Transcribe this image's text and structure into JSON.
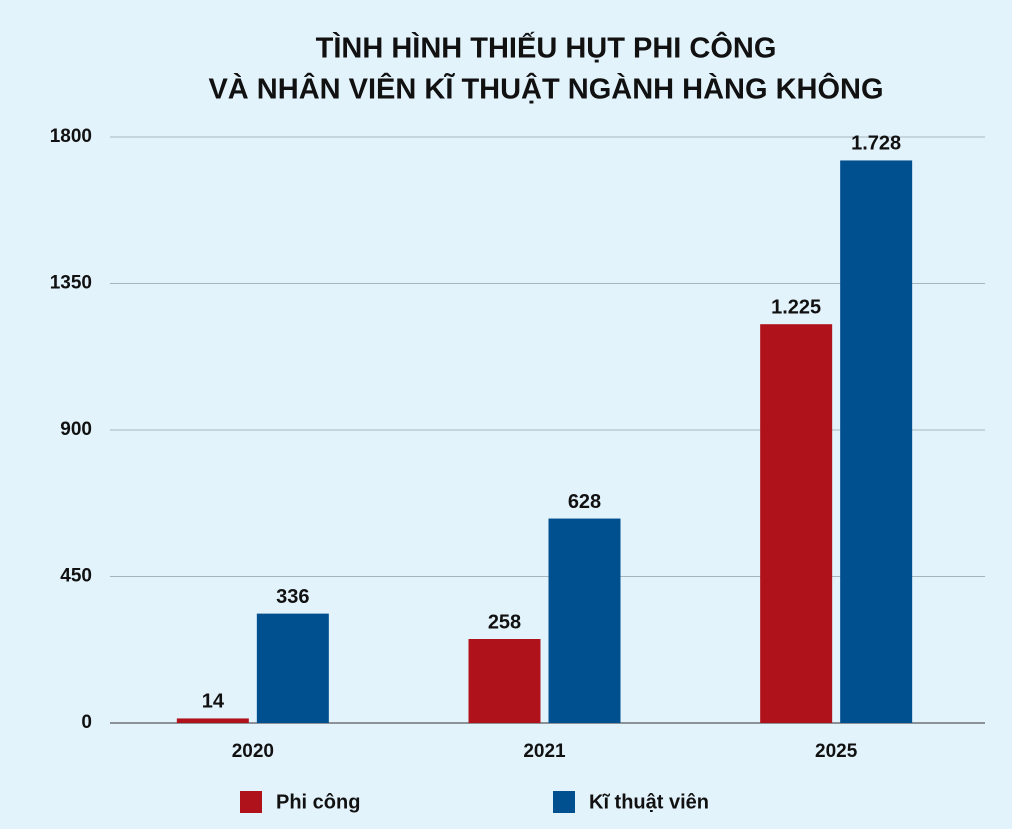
{
  "chart_data": {
    "type": "bar",
    "title": [
      "TÌNH HÌNH THIẾU HỤT PHI CÔNG",
      "VÀ NHÂN VIÊN KĨ THUẬT NGÀNH HÀNG KHÔNG"
    ],
    "categories": [
      "2020",
      "2021",
      "2025"
    ],
    "series": [
      {
        "name": "Phi công",
        "color": "#b0121b",
        "values": [
          14,
          258,
          1225
        ],
        "value_labels": [
          "14",
          "258",
          "1.225"
        ]
      },
      {
        "name": "Kĩ thuật viên",
        "color": "#00508f",
        "values": [
          336,
          628,
          1728
        ],
        "value_labels": [
          "336",
          "628",
          "1.728"
        ]
      }
    ],
    "ylim": [
      0,
      1800
    ],
    "yticks": [
      0,
      450,
      900,
      1350,
      1800
    ],
    "grid": true
  }
}
